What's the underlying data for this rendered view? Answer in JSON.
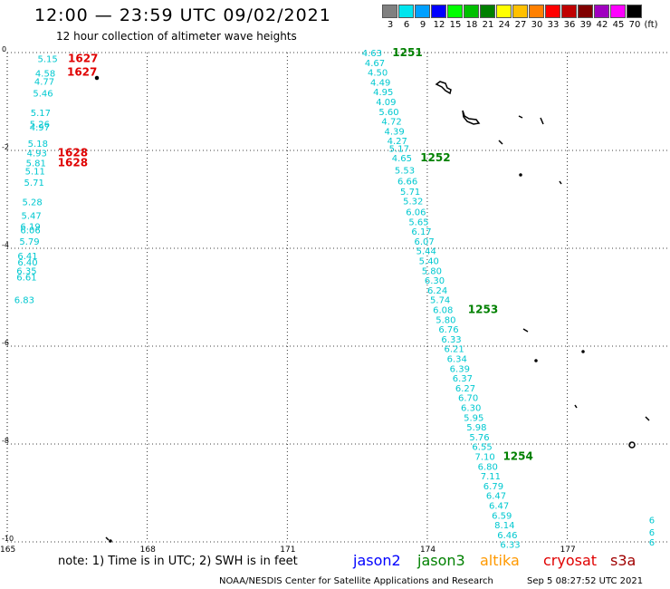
{
  "header": {
    "title": "12:00 — 23:59 UTC 09/02/2021",
    "subtitle": "12 hour collection of altimeter wave heights"
  },
  "legend": {
    "unit": "(ft)",
    "items": [
      {
        "label": "3",
        "color": "#808080"
      },
      {
        "label": "6",
        "color": "#00e5ee"
      },
      {
        "label": "9",
        "color": "#00a0ff"
      },
      {
        "label": "12",
        "color": "#0000ff"
      },
      {
        "label": "15",
        "color": "#00ff00"
      },
      {
        "label": "18",
        "color": "#00c000"
      },
      {
        "label": "21",
        "color": "#008000"
      },
      {
        "label": "24",
        "color": "#ffff00"
      },
      {
        "label": "27",
        "color": "#ffc000"
      },
      {
        "label": "30",
        "color": "#ff8000"
      },
      {
        "label": "33",
        "color": "#ff0000"
      },
      {
        "label": "36",
        "color": "#c00000"
      },
      {
        "label": "39",
        "color": "#800000"
      },
      {
        "label": "42",
        "color": "#a000c0"
      },
      {
        "label": "45",
        "color": "#ff00ff"
      },
      {
        "label": "70",
        "color": "#000000"
      }
    ]
  },
  "map": {
    "lat_labels": [
      "0",
      "-2",
      "-4",
      "-6",
      "-8",
      "-10"
    ],
    "lon_labels": [
      "165",
      "168",
      "171",
      "174",
      "177"
    ],
    "left_track": [
      {
        "v": "5.15",
        "lat": -0.12,
        "lon": 165.65
      },
      {
        "v": "4.58",
        "lat": -0.42,
        "lon": 165.6
      },
      {
        "v": "4.77",
        "lat": -0.58,
        "lon": 165.58
      },
      {
        "v": "5.46",
        "lat": -0.82,
        "lon": 165.55
      },
      {
        "v": "5.17",
        "lat": -1.22,
        "lon": 165.5
      },
      {
        "v": "5.26",
        "lat": -1.45,
        "lon": 165.48
      },
      {
        "v": "4.97",
        "lat": -1.52,
        "lon": 165.48
      },
      {
        "v": "5.18",
        "lat": -1.85,
        "lon": 165.44
      },
      {
        "v": "4.93",
        "lat": -2.05,
        "lon": 165.42
      },
      {
        "v": "5.81",
        "lat": -2.25,
        "lon": 165.4
      },
      {
        "v": "5.11",
        "lat": -2.42,
        "lon": 165.38
      },
      {
        "v": "5.71",
        "lat": -2.65,
        "lon": 165.36
      },
      {
        "v": "5.28",
        "lat": -3.05,
        "lon": 165.32
      },
      {
        "v": "5.47",
        "lat": -3.32,
        "lon": 165.3
      },
      {
        "v": "6.19",
        "lat": -3.55,
        "lon": 165.28
      },
      {
        "v": "6.06",
        "lat": -3.62,
        "lon": 165.28
      },
      {
        "v": "5.79",
        "lat": -3.85,
        "lon": 165.26
      },
      {
        "v": "6.41",
        "lat": -4.15,
        "lon": 165.22
      },
      {
        "v": "6.40",
        "lat": -4.28,
        "lon": 165.22
      },
      {
        "v": "6.35",
        "lat": -4.45,
        "lon": 165.2
      },
      {
        "v": "6.61",
        "lat": -4.58,
        "lon": 165.2
      },
      {
        "v": "6.83",
        "lat": -5.05,
        "lon": 165.15
      }
    ],
    "right_track": [
      {
        "v": "4.63",
        "lat": 0.0,
        "lon": 172.6
      },
      {
        "v": "4.67",
        "lat": -0.2,
        "lon": 172.66
      },
      {
        "v": "4.50",
        "lat": -0.4,
        "lon": 172.72
      },
      {
        "v": "4.49",
        "lat": -0.6,
        "lon": 172.78
      },
      {
        "v": "4.95",
        "lat": -0.8,
        "lon": 172.84
      },
      {
        "v": "4.09",
        "lat": -1.0,
        "lon": 172.9
      },
      {
        "v": "5.60",
        "lat": -1.2,
        "lon": 172.96
      },
      {
        "v": "4.72",
        "lat": -1.4,
        "lon": 173.02
      },
      {
        "v": "4.39",
        "lat": -1.6,
        "lon": 173.08
      },
      {
        "v": "4.27",
        "lat": -1.8,
        "lon": 173.14
      },
      {
        "v": "5.17",
        "lat": -1.95,
        "lon": 173.18
      },
      {
        "v": "4.65",
        "lat": -2.15,
        "lon": 173.24
      },
      {
        "v": "5.53",
        "lat": -2.4,
        "lon": 173.3
      },
      {
        "v": "6.66",
        "lat": -2.62,
        "lon": 173.36
      },
      {
        "v": "5.71",
        "lat": -2.83,
        "lon": 173.42
      },
      {
        "v": "5.32",
        "lat": -3.03,
        "lon": 173.48
      },
      {
        "v": "6.06",
        "lat": -3.25,
        "lon": 173.54
      },
      {
        "v": "5.65",
        "lat": -3.45,
        "lon": 173.6
      },
      {
        "v": "6.17",
        "lat": -3.65,
        "lon": 173.66
      },
      {
        "v": "6.07",
        "lat": -3.85,
        "lon": 173.72
      },
      {
        "v": "5.44",
        "lat": -4.05,
        "lon": 173.76
      },
      {
        "v": "5.40",
        "lat": -4.25,
        "lon": 173.82
      },
      {
        "v": "5.80",
        "lat": -4.45,
        "lon": 173.88
      },
      {
        "v": "6.30",
        "lat": -4.65,
        "lon": 173.94
      },
      {
        "v": "6.24",
        "lat": -4.85,
        "lon": 174.0
      },
      {
        "v": "5.74",
        "lat": -5.05,
        "lon": 174.06
      },
      {
        "v": "6.08",
        "lat": -5.25,
        "lon": 174.12
      },
      {
        "v": "5.80",
        "lat": -5.45,
        "lon": 174.18
      },
      {
        "v": "6.76",
        "lat": -5.65,
        "lon": 174.24
      },
      {
        "v": "6.33",
        "lat": -5.85,
        "lon": 174.3
      },
      {
        "v": "6.21",
        "lat": -6.05,
        "lon": 174.36
      },
      {
        "v": "6.34",
        "lat": -6.25,
        "lon": 174.42
      },
      {
        "v": "6.39",
        "lat": -6.45,
        "lon": 174.48
      },
      {
        "v": "6.37",
        "lat": -6.65,
        "lon": 174.54
      },
      {
        "v": "6.27",
        "lat": -6.85,
        "lon": 174.6
      },
      {
        "v": "6.70",
        "lat": -7.05,
        "lon": 174.66
      },
      {
        "v": "6.30",
        "lat": -7.25,
        "lon": 174.72
      },
      {
        "v": "5.95",
        "lat": -7.45,
        "lon": 174.78
      },
      {
        "v": "5.98",
        "lat": -7.65,
        "lon": 174.84
      },
      {
        "v": "5.76",
        "lat": -7.85,
        "lon": 174.9
      },
      {
        "v": "6.55",
        "lat": -8.05,
        "lon": 174.96
      },
      {
        "v": "7.10",
        "lat": -8.25,
        "lon": 175.02
      },
      {
        "v": "6.80",
        "lat": -8.45,
        "lon": 175.08
      },
      {
        "v": "7.11",
        "lat": -8.65,
        "lon": 175.14
      },
      {
        "v": "6.79",
        "lat": -8.85,
        "lon": 175.2
      },
      {
        "v": "6.47",
        "lat": -9.05,
        "lon": 175.26
      },
      {
        "v": "6.47",
        "lat": -9.25,
        "lon": 175.32
      },
      {
        "v": "6.59",
        "lat": -9.45,
        "lon": 175.38
      },
      {
        "v": "8.14",
        "lat": -9.65,
        "lon": 175.44
      },
      {
        "v": "6.46",
        "lat": -9.85,
        "lon": 175.5
      },
      {
        "v": "6.33",
        "lat": -10.05,
        "lon": 175.56
      }
    ],
    "edge_values": [
      {
        "v": "6",
        "lat": -9.55,
        "lon": 178.75
      },
      {
        "v": "6",
        "lat": -9.8,
        "lon": 178.75
      },
      {
        "v": "6",
        "lat": -10.0,
        "lon": 178.75
      }
    ],
    "time_labels_red": [
      {
        "t": "1627",
        "lat": -0.12,
        "lon": 166.3
      },
      {
        "t": "1627",
        "lat": -0.4,
        "lon": 166.28
      },
      {
        "t": "1628",
        "lat": -2.05,
        "lon": 166.08
      },
      {
        "t": "1628",
        "lat": -2.25,
        "lon": 166.08
      }
    ],
    "time_labels_green": [
      {
        "t": "1251",
        "lat": 0.0,
        "lon": 173.25
      },
      {
        "t": "1252",
        "lat": -2.15,
        "lon": 173.85
      },
      {
        "t": "1253",
        "lat": -5.25,
        "lon": 174.87
      },
      {
        "t": "1254",
        "lat": -8.25,
        "lon": 175.62
      }
    ]
  },
  "footer": {
    "note": "note: 1) Time is in UTC; 2) SWH is in feet",
    "satellites": [
      {
        "name": "jason2",
        "color": "#0000ff"
      },
      {
        "name": "jason3",
        "color": "#008000"
      },
      {
        "name": "altika",
        "color": "#ff9900"
      },
      {
        "name": "cryosat",
        "color": "#e00000"
      },
      {
        "name": "s3a",
        "color": "#a00000"
      }
    ],
    "credit": "NOAA/NESDIS Center for Satellite Applications and Research",
    "timestamp": "Sep  5 08:27:52 UTC 2021"
  }
}
